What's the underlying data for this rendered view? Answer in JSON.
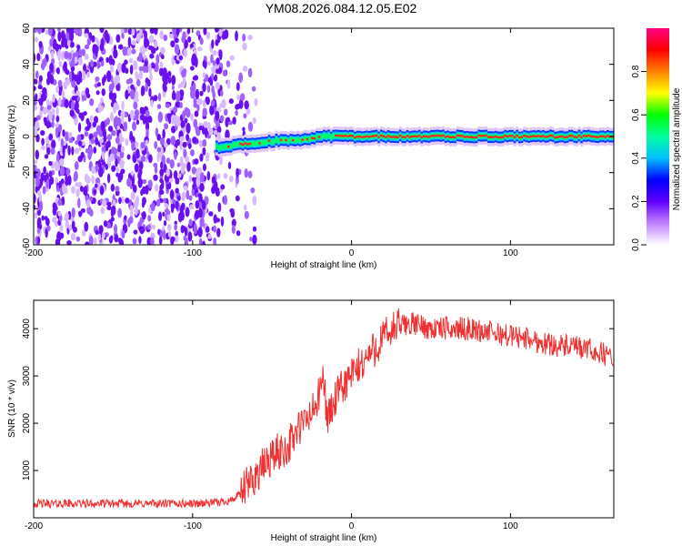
{
  "title": "YM08.2026.084.12.05.E02",
  "chart_data": [
    {
      "type": "heatmap",
      "xlabel": "Height of straight line (km)",
      "ylabel": "Frequency (Hz)",
      "xlim": [
        -200,
        165
      ],
      "ylim": [
        -60,
        60
      ],
      "xticks": [
        -200,
        -100,
        0,
        100
      ],
      "yticks": [
        -60,
        -40,
        -20,
        0,
        20,
        40,
        60
      ],
      "colorbar": {
        "label": "Normalized spectral amplitude",
        "range": [
          0,
          1
        ],
        "ticks": [
          "0.0",
          "0.2",
          "0.4",
          "0.6",
          "0.8"
        ],
        "colors": [
          "#ffffff",
          "#c080ff",
          "#6000ff",
          "#0000ff",
          "#00c0ff",
          "#00ffa0",
          "#00ff00",
          "#ffff00",
          "#ff8000",
          "#ff0000",
          "#ff0080"
        ]
      },
      "noise_region_x": [
        -200,
        -60
      ],
      "ridge": {
        "x": [
          -85,
          -75,
          -65,
          -55,
          -45,
          -35,
          -25,
          -20,
          -10,
          0,
          10,
          30,
          50,
          70,
          75,
          80,
          100,
          130,
          165
        ],
        "y": [
          -6,
          -5,
          -4,
          -3,
          -2,
          -2,
          -1,
          0,
          0,
          0,
          0,
          0,
          0,
          0,
          -1,
          0,
          0,
          0,
          0
        ]
      }
    },
    {
      "type": "line",
      "xlabel": "Height of straight line (km)",
      "ylabel": "SNR (10 * v/v)",
      "xlim": [
        -200,
        165
      ],
      "ylim": [
        0,
        4600
      ],
      "xticks": [
        -200,
        -100,
        0,
        100
      ],
      "yticks": [
        1000,
        2000,
        3000,
        4000
      ],
      "series": [
        {
          "color": "#f03030",
          "x": [
            -200,
            -180,
            -160,
            -140,
            -120,
            -100,
            -85,
            -75,
            -70,
            -65,
            -60,
            -55,
            -50,
            -45,
            -40,
            -35,
            -30,
            -25,
            -20,
            -18,
            -15,
            -10,
            -5,
            0,
            5,
            10,
            15,
            20,
            25,
            30,
            35,
            40,
            45,
            50,
            55,
            60,
            65,
            70,
            75,
            80,
            85,
            90,
            100,
            110,
            120,
            130,
            140,
            150,
            160,
            165
          ],
          "y": [
            300,
            300,
            300,
            300,
            300,
            300,
            320,
            380,
            500,
            700,
            900,
            1100,
            1300,
            1400,
            1500,
            1800,
            2000,
            2200,
            2600,
            3000,
            2100,
            2500,
            2800,
            3000,
            3200,
            3400,
            3600,
            3800,
            3950,
            4050,
            4100,
            4100,
            4050,
            4000,
            4000,
            4000,
            4000,
            4000,
            4000,
            3950,
            3950,
            3900,
            3850,
            3800,
            3700,
            3650,
            3600,
            3550,
            3450,
            3400
          ]
        }
      ]
    }
  ]
}
